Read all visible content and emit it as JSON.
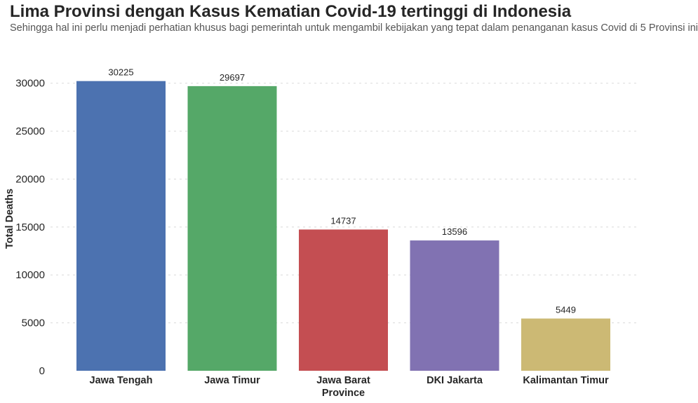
{
  "chart_data": {
    "type": "bar",
    "title": "Lima Provinsi dengan Kasus Kematian Covid-19 tertinggi di Indonesia",
    "subtitle": "Sehingga hal ini perlu menjadi perhatian khusus bagi pemerintah untuk mengambil kebijakan yang tepat dalam penanganan kasus Covid di 5 Provinsi ini",
    "xlabel": "Province",
    "ylabel": "Total Deaths",
    "categories": [
      "Jawa Tengah",
      "Jawa Timur",
      "Jawa Barat",
      "DKI Jakarta",
      "Kalimantan Timur"
    ],
    "values": [
      30225,
      29697,
      14737,
      13596,
      5449
    ],
    "data_labels": [
      "30225",
      "29697",
      "14737",
      "13596",
      "5449"
    ],
    "colors": [
      "#4c72b0",
      "#55a868",
      "#c44e52",
      "#8172b2",
      "#ccb974"
    ],
    "yticks": [
      0,
      5000,
      10000,
      15000,
      20000,
      25000,
      30000
    ],
    "ytick_labels": [
      "0",
      "5000",
      "10000",
      "15000",
      "20000",
      "25000",
      "30000"
    ],
    "ylim": [
      0,
      31736
    ],
    "grid": true,
    "grid_axis": "y",
    "grid_style": "dotted",
    "legend": "none"
  }
}
